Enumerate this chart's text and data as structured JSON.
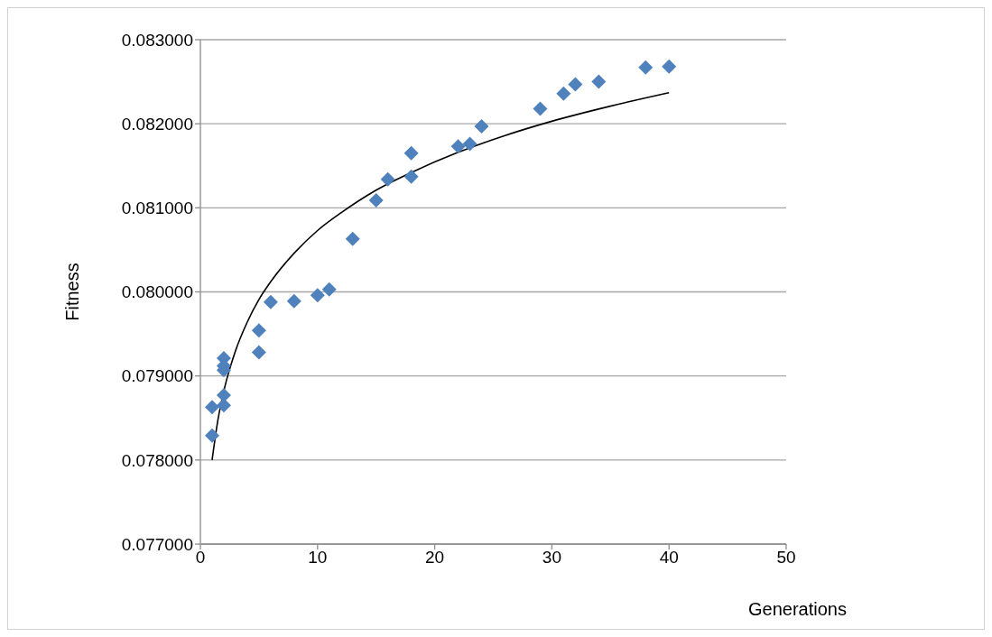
{
  "chart_data": {
    "type": "scatter",
    "xlabel": "Generations",
    "ylabel": "Fitness",
    "xlim": [
      0,
      50
    ],
    "xticks": [
      0,
      10,
      20,
      30,
      40,
      50
    ],
    "ylim": [
      0.077,
      0.083
    ],
    "yticks": [
      {
        "value": 0.077,
        "label": "0.077000"
      },
      {
        "value": 0.078,
        "label": "0.078000"
      },
      {
        "value": 0.079,
        "label": "0.079000"
      },
      {
        "value": 0.08,
        "label": "0.080000"
      },
      {
        "value": 0.081,
        "label": "0.081000"
      },
      {
        "value": 0.082,
        "label": "0.082000"
      },
      {
        "value": 0.083,
        "label": "0.083000"
      }
    ],
    "grid": "y",
    "legend": false,
    "series": [
      {
        "color": "#4f81bd",
        "marker": "diamond",
        "x": [
          1,
          1,
          2,
          2,
          2,
          2,
          2,
          5,
          5,
          6,
          8,
          10,
          11,
          13,
          15,
          16,
          18,
          18,
          22,
          23,
          24,
          29,
          31,
          32,
          34,
          38,
          40
        ],
        "values": [
          0.07829,
          0.07863,
          0.07921,
          0.07912,
          0.07907,
          0.07877,
          0.07865,
          0.07954,
          0.07928,
          0.07988,
          0.07989,
          0.07996,
          0.08003,
          0.08063,
          0.08109,
          0.08134,
          0.08165,
          0.08137,
          0.08173,
          0.08176,
          0.08197,
          0.08218,
          0.08236,
          0.08247,
          0.0825,
          0.08267,
          0.08268
        ]
      },
      {
        "type": "line",
        "color": "#000000",
        "marker": "none",
        "line_style": "solid",
        "x": [
          1,
          1.5,
          2,
          3,
          4,
          5,
          6,
          8,
          10,
          12,
          15,
          18,
          22,
          26,
          30,
          35,
          40
        ],
        "values": [
          0.078,
          0.07848,
          0.07882,
          0.0793,
          0.07964,
          0.07991,
          0.08012,
          0.08046,
          0.08073,
          0.08094,
          0.08121,
          0.08142,
          0.08166,
          0.08186,
          0.08203,
          0.08221,
          0.08237
        ]
      }
    ]
  }
}
